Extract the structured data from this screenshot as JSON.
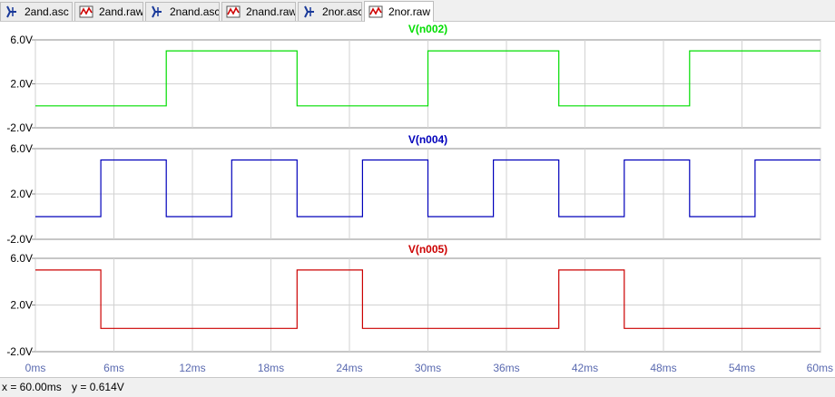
{
  "tabs": [
    {
      "label": "2and.asc",
      "kind": "schematic",
      "active": false
    },
    {
      "label": "2and.raw",
      "kind": "waveform",
      "active": false
    },
    {
      "label": "2nand.asc",
      "kind": "schematic",
      "active": false
    },
    {
      "label": "2nand.raw",
      "kind": "waveform",
      "active": false
    },
    {
      "label": "2nor.asc",
      "kind": "schematic",
      "active": false
    },
    {
      "label": "2nor.raw",
      "kind": "waveform",
      "active": true
    }
  ],
  "chart_data": [
    {
      "type": "line",
      "title": "V(n002)",
      "color": "#00dd00",
      "x_unit": "ms",
      "xlim": [
        0,
        60
      ],
      "ylim": [
        -2,
        6
      ],
      "yticks": [
        "6.0V",
        "2.0V",
        "-2.0V"
      ],
      "grid": true,
      "x": [
        0,
        10,
        10,
        20,
        20,
        30,
        30,
        40,
        40,
        50,
        50,
        60
      ],
      "y": [
        0,
        0,
        5,
        5,
        0,
        0,
        5,
        5,
        0,
        0,
        5,
        5
      ]
    },
    {
      "type": "line",
      "title": "V(n004)",
      "color": "#0000bb",
      "x_unit": "ms",
      "xlim": [
        0,
        60
      ],
      "ylim": [
        -2,
        6
      ],
      "yticks": [
        "6.0V",
        "2.0V",
        "-2.0V"
      ],
      "grid": true,
      "x": [
        0,
        5,
        5,
        10,
        10,
        15,
        15,
        20,
        20,
        25,
        25,
        30,
        30,
        35,
        35,
        40,
        40,
        45,
        45,
        50,
        50,
        55,
        55,
        60
      ],
      "y": [
        0,
        0,
        5,
        5,
        0,
        0,
        5,
        5,
        0,
        0,
        5,
        5,
        0,
        0,
        5,
        5,
        0,
        0,
        5,
        5,
        0,
        0,
        5,
        5
      ]
    },
    {
      "type": "line",
      "title": "V(n005)",
      "color": "#cc0000",
      "x_unit": "ms",
      "xlim": [
        0,
        60
      ],
      "ylim": [
        -2,
        6
      ],
      "yticks": [
        "6.0V",
        "2.0V",
        "-2.0V"
      ],
      "grid": true,
      "x": [
        0,
        5,
        5,
        20,
        20,
        25,
        25,
        40,
        40,
        45,
        45,
        60
      ],
      "y": [
        5,
        5,
        0,
        0,
        5,
        5,
        0,
        0,
        5,
        5,
        0,
        0
      ]
    }
  ],
  "x_ticks": [
    "0ms",
    "6ms",
    "12ms",
    "18ms",
    "24ms",
    "30ms",
    "36ms",
    "42ms",
    "48ms",
    "54ms",
    "60ms"
  ],
  "x_tick_values": [
    0,
    6,
    12,
    18,
    24,
    30,
    36,
    42,
    48,
    54,
    60
  ],
  "status": {
    "x_readout": "x = 60.00ms",
    "y_readout": "y = 0.614V"
  }
}
